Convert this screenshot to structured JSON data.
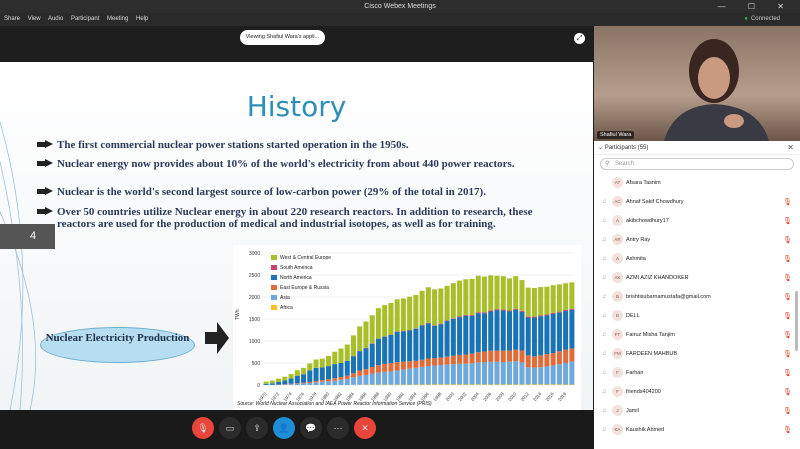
{
  "window": {
    "title": "Cisco Webex Meetings",
    "connection": "Connected",
    "controls": "— ☐ ✕"
  },
  "menu": [
    "Share",
    "View",
    "Audio",
    "Participant",
    "Meeting",
    "Help"
  ],
  "share_banner": "Viewing Shafiul Wara's appli...",
  "slide": {
    "title": "History",
    "number": "4",
    "bullets": [
      "The first commercial nuclear power stations started operation in the 1950s.",
      "Nuclear energy now provides about 10% of the world's electricity from about 440 power reactors.",
      "Nuclear is the world's second largest source of low-carbon power (29% of the total in 2017).",
      "Over 50 countries utilize Nuclear energy in about 220 research reactors. In addition to research, these reactors are used for the production of medical and industrial isotopes, as well as for training."
    ],
    "callout": "Nuclear Electricity Production",
    "chart_source": "Source: World Nuclear Association and IAEA Power Reactor Information Service (PRIS)"
  },
  "chart_data": {
    "type": "bar",
    "stacked": true,
    "ylabel": "TWh",
    "ylim": [
      0,
      3000
    ],
    "yticks": [
      0,
      500,
      1000,
      1500,
      2000,
      2500,
      3000
    ],
    "xticks": [
      "1970",
      "1972",
      "1974",
      "1976",
      "1978",
      "1980",
      "1982",
      "1984",
      "1986",
      "1988",
      "1990",
      "1992",
      "1994",
      "1996",
      "1998",
      "2000",
      "2002",
      "2004",
      "2006",
      "2008",
      "2010",
      "2012",
      "2014",
      "2016",
      "2019"
    ],
    "categories": [
      "1970",
      "1971",
      "1972",
      "1973",
      "1974",
      "1975",
      "1976",
      "1977",
      "1978",
      "1979",
      "1980",
      "1981",
      "1982",
      "1983",
      "1984",
      "1985",
      "1986",
      "1987",
      "1988",
      "1989",
      "1990",
      "1991",
      "1992",
      "1993",
      "1994",
      "1995",
      "1996",
      "1997",
      "1998",
      "1999",
      "2000",
      "2001",
      "2002",
      "2003",
      "2004",
      "2005",
      "2006",
      "2007",
      "2008",
      "2009",
      "2010",
      "2011",
      "2012",
      "2013",
      "2014",
      "2015",
      "2016",
      "2017",
      "2018",
      "2019"
    ],
    "legend_position": "top-left",
    "series": [
      {
        "name": "Africa",
        "color": "#f3c623",
        "values": [
          0,
          0,
          0,
          0,
          0,
          0,
          0,
          0,
          0,
          0,
          0,
          0,
          0,
          0,
          5,
          8,
          8,
          9,
          10,
          10,
          9,
          10,
          10,
          10,
          10,
          12,
          12,
          13,
          13,
          13,
          13,
          13,
          12,
          12,
          14,
          12,
          11,
          12,
          12,
          12,
          12,
          13,
          13,
          13,
          14,
          12,
          15,
          15,
          11,
          11
        ]
      },
      {
        "name": "Asia",
        "color": "#6fa8dc",
        "values": [
          1,
          2,
          5,
          10,
          17,
          25,
          35,
          45,
          60,
          75,
          85,
          100,
          120,
          140,
          170,
          200,
          220,
          250,
          270,
          290,
          300,
          320,
          340,
          360,
          380,
          400,
          420,
          430,
          440,
          450,
          460,
          470,
          470,
          480,
          500,
          510,
          520,
          520,
          510,
          520,
          530,
          500,
          390,
          380,
          390,
          410,
          430,
          460,
          490,
          520
        ]
      },
      {
        "name": "East Europe & Russia",
        "color": "#e06c3c",
        "values": [
          1,
          2,
          5,
          8,
          12,
          15,
          20,
          25,
          30,
          35,
          45,
          55,
          60,
          70,
          90,
          120,
          130,
          150,
          170,
          180,
          190,
          190,
          180,
          170,
          160,
          160,
          170,
          170,
          170,
          180,
          190,
          200,
          210,
          220,
          230,
          240,
          250,
          250,
          260,
          250,
          260,
          270,
          270,
          260,
          270,
          280,
          280,
          290,
          300,
          300
        ]
      },
      {
        "name": "North America",
        "color": "#1a73b5",
        "values": [
          25,
          35,
          60,
          85,
          120,
          170,
          190,
          260,
          300,
          290,
          300,
          320,
          320,
          340,
          390,
          440,
          480,
          530,
          600,
          620,
          640,
          690,
          690,
          700,
          730,
          780,
          800,
          730,
          760,
          810,
          840,
          860,
          880,
          860,
          890,
          870,
          890,
          920,
          910,
          890,
          910,
          880,
          860,
          880,
          890,
          880,
          890,
          880,
          880,
          880
        ]
      },
      {
        "name": "South America",
        "color": "#cc3f6f",
        "values": [
          0,
          0,
          0,
          0,
          0,
          0,
          0,
          0,
          0,
          0,
          0,
          0,
          0,
          0,
          3,
          4,
          4,
          5,
          6,
          6,
          7,
          7,
          8,
          8,
          8,
          9,
          9,
          10,
          11,
          12,
          12,
          20,
          21,
          20,
          20,
          21,
          21,
          21,
          22,
          21,
          21,
          22,
          21,
          21,
          22,
          22,
          23,
          22,
          22,
          22
        ]
      },
      {
        "name": "West & Central Europe",
        "color": "#a8bf2b",
        "values": [
          50,
          60,
          75,
          85,
          100,
          125,
          145,
          160,
          190,
          200,
          230,
          280,
          330,
          370,
          470,
          560,
          600,
          640,
          690,
          710,
          720,
          730,
          740,
          760,
          760,
          780,
          810,
          820,
          800,
          790,
          800,
          810,
          810,
          820,
          830,
          810,
          800,
          760,
          760,
          730,
          740,
          700,
          660,
          650,
          640,
          630,
          630,
          620,
          610,
          600
        ]
      }
    ]
  },
  "video": {
    "name": "Shafiul Wara"
  },
  "participants": {
    "header": "Participants (55)",
    "search_placeholder": "Search",
    "items": [
      {
        "initials": "AT",
        "name": "Afsara Tasnim",
        "mic": ""
      },
      {
        "initials": "AC",
        "name": "Ahnaf Sakif Chowdhury",
        "mic": "🎙"
      },
      {
        "initials": "A",
        "name": "akibchowdhury17",
        "mic": "🎙"
      },
      {
        "initials": "AR",
        "name": "Antry Ray",
        "mic": "🎙"
      },
      {
        "initials": "A",
        "name": "Ashmita",
        "mic": "🎙"
      },
      {
        "initials": "AK",
        "name": "AZMI AZIZ KHANDOKER",
        "mic": "🎙"
      },
      {
        "initials": "B",
        "name": "brishtisubarnamustafa@gmail.com",
        "mic": "🎙"
      },
      {
        "initials": "D",
        "name": "DELL",
        "mic": "🎙"
      },
      {
        "initials": "FT",
        "name": "Fairuz Misha Tanjim",
        "mic": "🎙"
      },
      {
        "initials": "FM",
        "name": "FARDEEN MAHBUB",
        "mic": "🎙"
      },
      {
        "initials": "F",
        "name": "Farhan",
        "mic": "🎙"
      },
      {
        "initials": "F",
        "name": "friends404200",
        "mic": "🎙"
      },
      {
        "initials": "J",
        "name": "Jamil",
        "mic": "🎙"
      },
      {
        "initials": "KA",
        "name": "Kaushik Ahmed",
        "mic": "🎙"
      }
    ]
  },
  "controls": [
    {
      "name": "mute-button",
      "glyph": "🎙",
      "bg": "#e8463a"
    },
    {
      "name": "video-button",
      "glyph": "▭",
      "bg": "#2b2b2b"
    },
    {
      "name": "share-button",
      "glyph": "⇪",
      "bg": "#2b2b2b"
    },
    {
      "name": "participants-button",
      "glyph": "👤",
      "bg": "#1e8fd6"
    },
    {
      "name": "chat-button",
      "glyph": "💬",
      "bg": "#2b2b2b"
    },
    {
      "name": "more-button",
      "glyph": "⋯",
      "bg": "#2b2b2b"
    },
    {
      "name": "leave-button",
      "glyph": "✕",
      "bg": "#e8463a"
    }
  ]
}
